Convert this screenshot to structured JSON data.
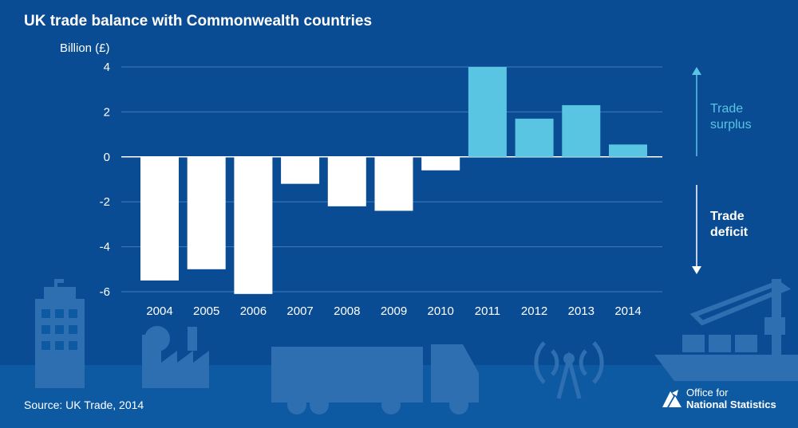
{
  "chart_data": {
    "type": "bar",
    "title": "UK trade balance with Commonwealth countries",
    "ylabel": "Billion (£)",
    "xlabel": "",
    "categories": [
      "2004",
      "2005",
      "2006",
      "2007",
      "2008",
      "2009",
      "2010",
      "2011",
      "2012",
      "2013",
      "2014"
    ],
    "values": [
      -5.5,
      -5.0,
      -6.1,
      -1.2,
      -2.2,
      -2.4,
      -0.6,
      4.0,
      1.7,
      2.3,
      0.55
    ],
    "ylim": [
      -6,
      4
    ],
    "yticks": [
      "4",
      "2",
      "0",
      "-2",
      "-4",
      "-6"
    ],
    "grid": true,
    "colors": {
      "deficit": "#ffffff",
      "surplus": "#5ac4e3",
      "background": "#0a4c93",
      "gridline": "#3f7cbd"
    },
    "annotations": {
      "surplus": [
        "Trade",
        "surplus"
      ],
      "deficit": [
        "Trade",
        "deficit"
      ]
    }
  },
  "source": "Source: UK Trade, 2014",
  "logo": {
    "line1": "Office for",
    "line2": "National Statistics"
  },
  "decor_icons": [
    "office-building-icon",
    "factory-icon",
    "lorry-icon",
    "radio-mast-icon",
    "cargo-ship-crane-icon"
  ]
}
